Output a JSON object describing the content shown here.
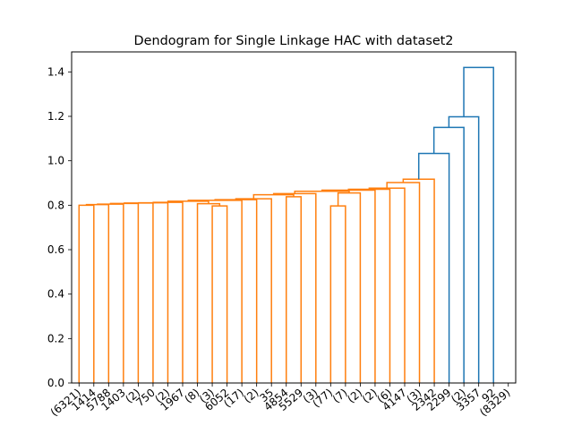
{
  "chart_data": {
    "type": "dendrogram",
    "title": "Dendogram for Single Linkage HAC with dataset2",
    "xlabel": "",
    "ylabel": "",
    "ylim": [
      0,
      1.49
    ],
    "yticks": [
      "0.0",
      "0.2",
      "0.4",
      "0.6",
      "0.8",
      "1.0",
      "1.2",
      "1.4"
    ],
    "ytick_values": [
      0.0,
      0.2,
      0.4,
      0.6,
      0.8,
      1.0,
      1.2,
      1.4
    ],
    "leaf_labels": [
      "(6321)",
      "1414",
      "5788",
      "1403",
      "(2)",
      "750",
      "(2)",
      "1967",
      "(8)",
      "(3)",
      "6052",
      "(17)",
      "(2)",
      "35",
      "4854",
      "5529",
      "(3)",
      "(77)",
      "(7)",
      "(2)",
      "(2)",
      "(6)",
      "4147",
      "(3)",
      "2342",
      "2299",
      "(2)",
      "3357",
      "92",
      "(8329)"
    ],
    "colors": {
      "cluster": "#ff7f0e",
      "above_threshold": "#1f77b4"
    },
    "merges": [
      {
        "left": 0,
        "right": 1,
        "height": 0.8,
        "color": "cluster"
      },
      {
        "left": 30,
        "right": 2,
        "height": 0.803,
        "color": "cluster"
      },
      {
        "left": 31,
        "right": 3,
        "height": 0.805,
        "color": "cluster"
      },
      {
        "left": 32,
        "right": 4,
        "height": 0.808,
        "color": "cluster"
      },
      {
        "left": 33,
        "right": 5,
        "height": 0.81,
        "color": "cluster"
      },
      {
        "left": 34,
        "right": 6,
        "height": 0.811,
        "color": "cluster"
      },
      {
        "left": 35,
        "right": 7,
        "height": 0.813,
        "color": "cluster"
      },
      {
        "left": 9,
        "right": 10,
        "height": 0.797,
        "color": "cluster"
      },
      {
        "left": 8,
        "right": 37,
        "height": 0.807,
        "color": "cluster"
      },
      {
        "left": 36,
        "right": 38,
        "height": 0.818,
        "color": "cluster"
      },
      {
        "left": 39,
        "right": 11,
        "height": 0.822,
        "color": "cluster"
      },
      {
        "left": 40,
        "right": 12,
        "height": 0.825,
        "color": "cluster"
      },
      {
        "left": 41,
        "right": 13,
        "height": 0.829,
        "color": "cluster"
      },
      {
        "left": 14,
        "right": 15,
        "height": 0.838,
        "color": "cluster"
      },
      {
        "left": 42,
        "right": 43,
        "height": 0.847,
        "color": "cluster"
      },
      {
        "left": 44,
        "right": 16,
        "height": 0.852,
        "color": "cluster"
      },
      {
        "left": 17,
        "right": 18,
        "height": 0.797,
        "color": "cluster"
      },
      {
        "left": 46,
        "right": 19,
        "height": 0.855,
        "color": "cluster"
      },
      {
        "left": 45,
        "right": 47,
        "height": 0.863,
        "color": "cluster"
      },
      {
        "left": 48,
        "right": 20,
        "height": 0.868,
        "color": "cluster"
      },
      {
        "left": 49,
        "right": 21,
        "height": 0.872,
        "color": "cluster"
      },
      {
        "left": 50,
        "right": 22,
        "height": 0.877,
        "color": "cluster"
      },
      {
        "left": 51,
        "right": 23,
        "height": 0.902,
        "color": "cluster"
      },
      {
        "left": 52,
        "right": 24,
        "height": 0.917,
        "color": "cluster"
      },
      {
        "left": 53,
        "right": 25,
        "height": 1.033,
        "color": "above_threshold"
      },
      {
        "left": 54,
        "right": 26,
        "height": 1.15,
        "color": "above_threshold"
      },
      {
        "left": 55,
        "right": 27,
        "height": 1.198,
        "color": "above_threshold"
      },
      {
        "left": 56,
        "right": 28,
        "height": 1.42,
        "color": "above_threshold"
      }
    ],
    "leaf_count": 30,
    "merge_count": 28
  }
}
